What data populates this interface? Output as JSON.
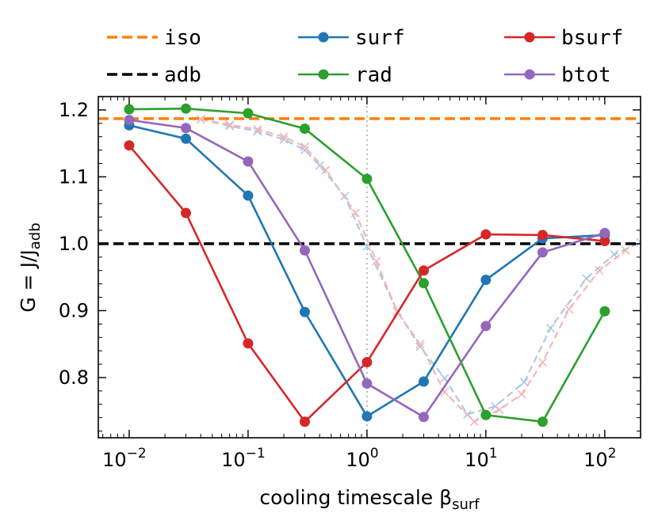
{
  "chart_data": {
    "type": "line",
    "xscale": "log",
    "xlim": [
      0.0055,
      200
    ],
    "ylim": [
      0.71,
      1.22
    ],
    "xlabel": "cooling timescale β",
    "xlabel_sub": "surf",
    "ylabel": "G = J/J",
    "ylabel_sub": "adb",
    "yticks": [
      {
        "v": 0.8,
        "label": "0.8"
      },
      {
        "v": 0.9,
        "label": "0.9"
      },
      {
        "v": 1.0,
        "label": "1.0"
      },
      {
        "v": 1.1,
        "label": "1.1"
      },
      {
        "v": 1.2,
        "label": "1.2"
      }
    ],
    "xticks": [
      {
        "v": 0.01,
        "base": "10",
        "exp": "−2"
      },
      {
        "v": 0.1,
        "base": "10",
        "exp": "−1"
      },
      {
        "v": 1,
        "base": "10",
        "exp": "0"
      },
      {
        "v": 10,
        "base": "10",
        "exp": "1"
      },
      {
        "v": 100,
        "base": "10",
        "exp": "2"
      }
    ],
    "vline": {
      "x": 1,
      "color": "#bbbbbb"
    },
    "hlines": [
      {
        "name": "iso",
        "y": 1.187,
        "color": "#ff7f0e"
      },
      {
        "name": "adb",
        "y": 1.0,
        "color": "#000000"
      }
    ],
    "series": [
      {
        "name": "surf",
        "color": "#1f77b4",
        "x": [
          0.01,
          0.03,
          0.1,
          0.3,
          1,
          3,
          10,
          30,
          100
        ],
        "y": [
          1.177,
          1.157,
          1.072,
          0.898,
          0.742,
          0.794,
          0.946,
          1.008,
          1.013
        ]
      },
      {
        "name": "rad",
        "color": "#2ca02c",
        "x": [
          0.01,
          0.03,
          0.1,
          0.3,
          1,
          3,
          10,
          30,
          100
        ],
        "y": [
          1.201,
          1.202,
          1.195,
          1.172,
          1.097,
          0.941,
          0.744,
          0.734,
          0.899
        ]
      },
      {
        "name": "bsurf",
        "color": "#d62728",
        "x": [
          0.01,
          0.03,
          0.1,
          0.3,
          1,
          3,
          10,
          30,
          100
        ],
        "y": [
          1.147,
          1.046,
          0.851,
          0.734,
          0.823,
          0.96,
          1.014,
          1.013,
          1.004
        ]
      },
      {
        "name": "btot",
        "color": "#9467bd",
        "x": [
          0.01,
          0.03,
          0.1,
          0.3,
          1,
          3,
          10,
          30,
          100
        ],
        "y": [
          1.185,
          1.173,
          1.123,
          0.99,
          0.791,
          0.741,
          0.877,
          0.987,
          1.016
        ]
      }
    ],
    "faint_series": [
      {
        "color": "#aec7e8",
        "x": [
          0.04,
          0.07,
          0.12,
          0.2,
          0.3,
          0.4,
          0.65,
          1.0,
          1.8,
          2.8,
          4.5,
          7,
          12,
          21,
          35,
          70,
          120,
          200
        ],
        "y": [
          1.186,
          1.176,
          1.168,
          1.156,
          1.14,
          1.117,
          1.071,
          0.996,
          0.899,
          0.846,
          0.799,
          0.745,
          0.757,
          0.793,
          0.874,
          0.948,
          0.984,
          1.002
        ]
      },
      {
        "color": "#f4b7b7",
        "x": [
          0.04,
          0.07,
          0.12,
          0.2,
          0.3,
          0.45,
          0.8,
          1.2,
          1.8,
          2.8,
          4.5,
          8,
          13,
          20,
          30,
          50,
          90,
          150
        ],
        "y": [
          1.186,
          1.178,
          1.171,
          1.16,
          1.145,
          1.11,
          1.046,
          0.974,
          0.898,
          0.85,
          0.778,
          0.734,
          0.752,
          0.775,
          0.823,
          0.902,
          0.96,
          0.99
        ]
      }
    ],
    "legend": [
      {
        "name": "iso",
        "style": "dashed",
        "color": "#ff7f0e"
      },
      {
        "name": "surf",
        "style": "marker",
        "color": "#1f77b4"
      },
      {
        "name": "bsurf",
        "style": "marker",
        "color": "#d62728"
      },
      {
        "name": "adb",
        "style": "dashed",
        "color": "#000000"
      },
      {
        "name": "rad",
        "style": "marker",
        "color": "#2ca02c"
      },
      {
        "name": "btot",
        "style": "marker",
        "color": "#9467bd"
      }
    ],
    "legend_location": "top, above plot"
  }
}
